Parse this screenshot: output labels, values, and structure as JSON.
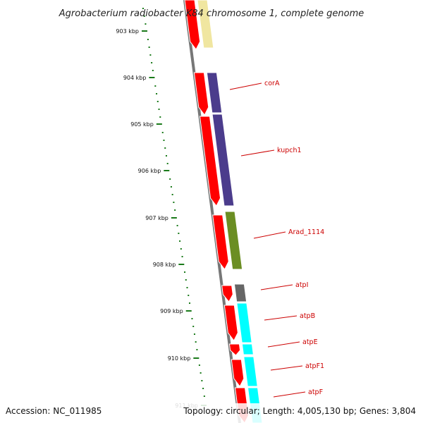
{
  "title": "Agrobacterium radiobacter K84 chromosome 1, complete genome",
  "accession": "Accession: NC_011985",
  "summary": "Topology: circular; Length: 4,005,130 bp; Genes: 3,804",
  "colors": {
    "strand_arrow": "#ff0000",
    "backbone": "#777777",
    "tick": "#1a7a1a",
    "label": "#cc0000"
  },
  "ticks": [
    "903 kbp",
    "904 kbp",
    "905 kbp",
    "906 kbp",
    "907 kbp",
    "908 kbp",
    "909 kbp",
    "910 kbp",
    "911 kbp"
  ],
  "genes": [
    {
      "label": "",
      "color": "#f0e6a0"
    },
    {
      "label": "corA",
      "color": "#4b3c8c"
    },
    {
      "label": "kupch1",
      "color": "#4b3c8c"
    },
    {
      "label": "Arad_1114",
      "color": "#6b8e23"
    },
    {
      "label": "atpI",
      "color": "#666666"
    },
    {
      "label": "atpB",
      "color": "#00ffff"
    },
    {
      "label": "atpE",
      "color": "#00ffff"
    },
    {
      "label": "atpF1",
      "color": "#00ffff"
    },
    {
      "label": "atpF",
      "color": "#00ffff"
    }
  ]
}
